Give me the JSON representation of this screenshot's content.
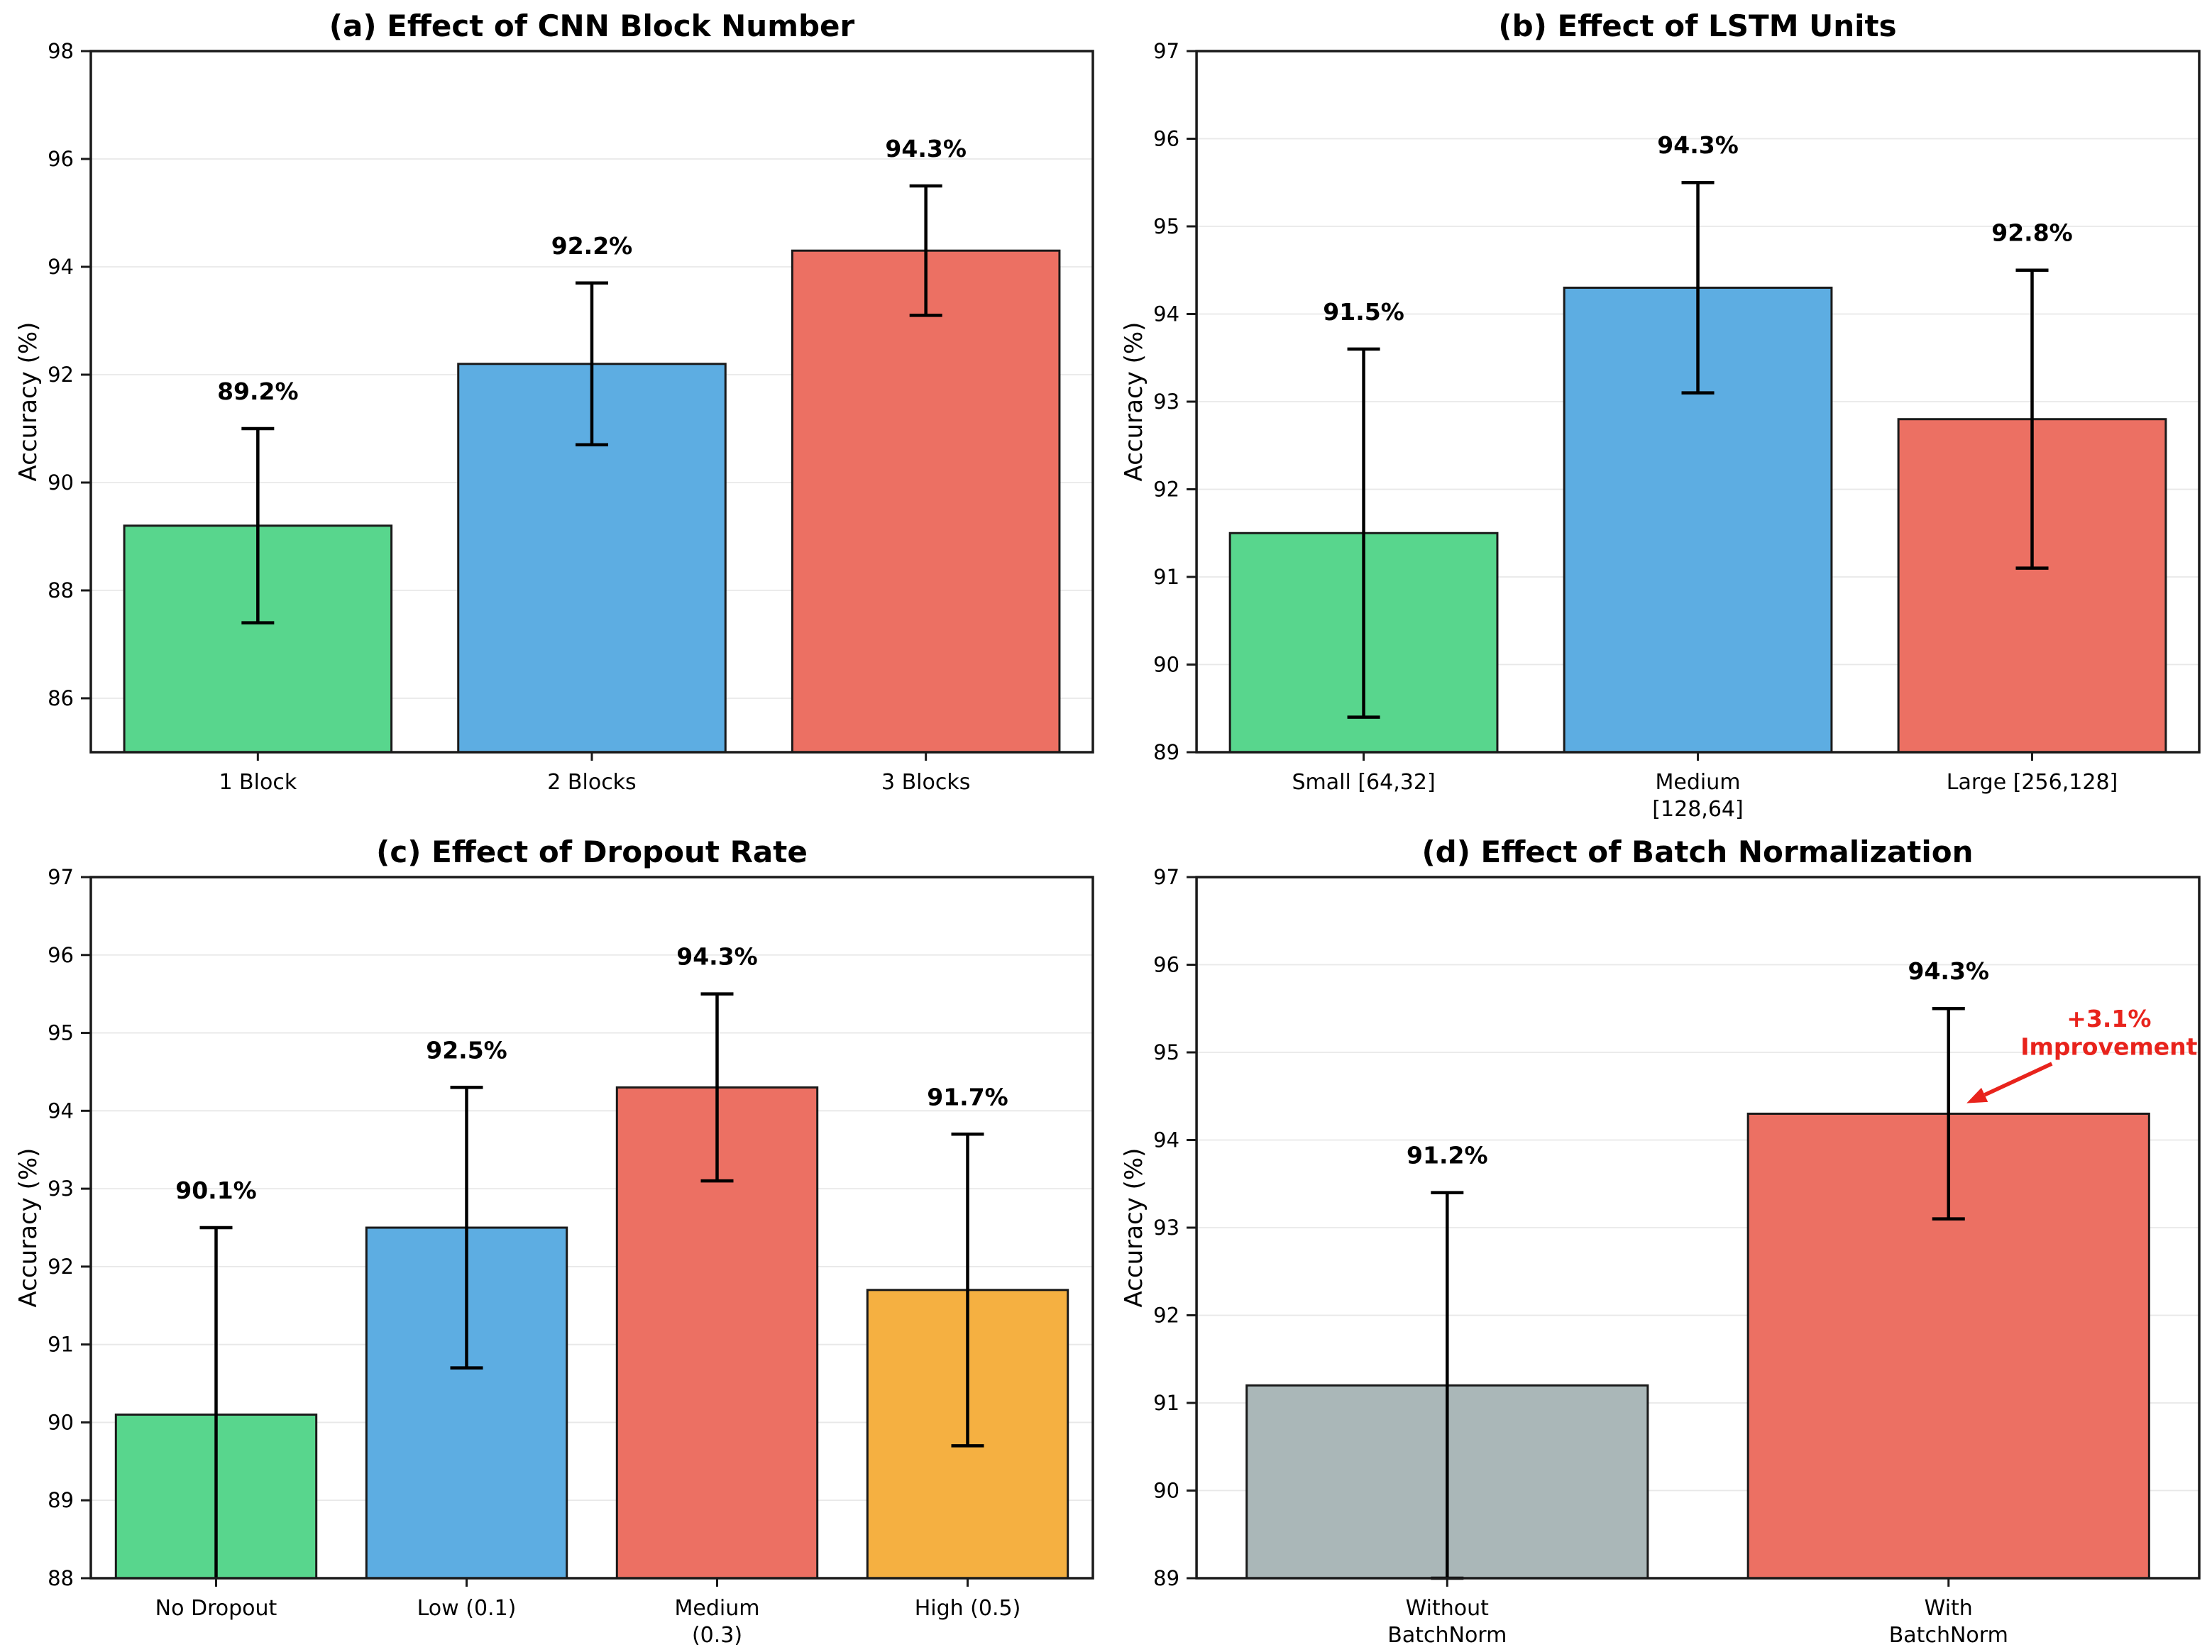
{
  "page": {
    "background": "#ffffff"
  },
  "palette": {
    "green": "#58D68D",
    "blue": "#5DADE2",
    "red": "#EC7063",
    "orange": "#F5B041",
    "gray": "#AAB7B8",
    "bar_edge": "#1a1a1a",
    "error_bar": "#000000",
    "grid": "#e8e8e8",
    "axis": "#1a1a1a",
    "text": "#000000"
  },
  "chart_data": [
    {
      "id": "a",
      "type": "bar",
      "title": "(a) Effect of CNN Block Number",
      "ylabel": "Accuracy (%)",
      "ylim": [
        85,
        98
      ],
      "yticks": [
        86,
        88,
        90,
        92,
        94,
        96,
        98
      ],
      "grid": true,
      "categories": [
        [
          "1 Block"
        ],
        [
          "2 Blocks"
        ],
        [
          "3 Blocks"
        ]
      ],
      "values": [
        89.2,
        92.2,
        94.3
      ],
      "errors": [
        1.8,
        1.5,
        1.2
      ],
      "bar_labels": [
        "89.2%",
        "92.2%",
        "94.3%"
      ],
      "bar_colors": [
        "green",
        "blue",
        "red"
      ]
    },
    {
      "id": "b",
      "type": "bar",
      "title": "(b) Effect of LSTM Units",
      "ylabel": "Accuracy (%)",
      "ylim": [
        89,
        97
      ],
      "yticks": [
        89,
        90,
        91,
        92,
        93,
        94,
        95,
        96,
        97
      ],
      "grid": true,
      "categories": [
        [
          "Small [64,32]"
        ],
        [
          "Medium",
          "[128,64]"
        ],
        [
          "Large [256,128]"
        ]
      ],
      "values": [
        91.5,
        94.3,
        92.8
      ],
      "errors": [
        2.1,
        1.2,
        1.7
      ],
      "bar_labels": [
        "91.5%",
        "94.3%",
        "92.8%"
      ],
      "bar_colors": [
        "green",
        "blue",
        "red"
      ]
    },
    {
      "id": "c",
      "type": "bar",
      "title": "(c) Effect of Dropout Rate",
      "ylabel": "Accuracy (%)",
      "ylim": [
        88,
        97
      ],
      "yticks": [
        88,
        89,
        90,
        91,
        92,
        93,
        94,
        95,
        96,
        97
      ],
      "grid": true,
      "categories": [
        [
          "No Dropout"
        ],
        [
          "Low (0.1)"
        ],
        [
          "Medium",
          "(0.3)"
        ],
        [
          "High (0.5)"
        ]
      ],
      "values": [
        90.1,
        92.5,
        94.3,
        91.7
      ],
      "errors": [
        2.4,
        1.8,
        1.2,
        2.0
      ],
      "bar_labels": [
        "90.1%",
        "92.5%",
        "94.3%",
        "91.7%"
      ],
      "bar_colors": [
        "green",
        "blue",
        "red",
        "orange"
      ]
    },
    {
      "id": "d",
      "type": "bar",
      "title": "(d) Effect of Batch Normalization",
      "ylabel": "Accuracy (%)",
      "ylim": [
        89,
        97
      ],
      "yticks": [
        89,
        90,
        91,
        92,
        93,
        94,
        95,
        96,
        97
      ],
      "grid": true,
      "categories": [
        [
          "Without",
          "BatchNorm"
        ],
        [
          "With",
          "BatchNorm"
        ]
      ],
      "values": [
        91.2,
        94.3
      ],
      "errors": [
        2.2,
        1.2
      ],
      "bar_labels": [
        "91.2%",
        "94.3%"
      ],
      "bar_colors": [
        "gray",
        "red"
      ],
      "annotation": {
        "lines": [
          "+3.1%",
          "Improvement"
        ],
        "color": "#E8231C",
        "text_x_frac": 0.91,
        "text_y_values": [
          95.38,
          95.06
        ],
        "arrow_from": [
          0.853,
          94.87
        ],
        "arrow_to": [
          0.768,
          94.42
        ]
      }
    }
  ]
}
